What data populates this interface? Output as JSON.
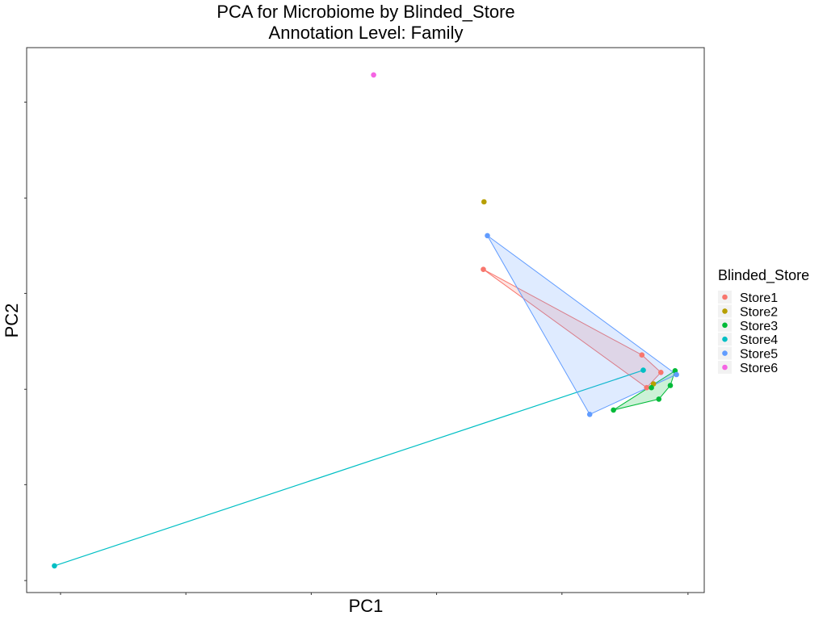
{
  "chart_data": {
    "type": "scatter",
    "title": "PCA for Microbiome by Blinded_Store",
    "subtitle": "Annotation Level: Family",
    "xlabel": "PC1",
    "ylabel": "PC2",
    "xlim": [
      0,
      1
    ],
    "ylim": [
      0,
      1
    ],
    "xticks_labeled": false,
    "yticks_labeled": false,
    "grid": false,
    "legend": {
      "title": "Blinded_Store",
      "placement": "right"
    },
    "series": [
      {
        "name": "Store1",
        "color": "#F8766D",
        "x": [
          0.674,
          0.908,
          0.936,
          0.915
        ],
        "y": [
          0.593,
          0.436,
          0.404,
          0.376
        ],
        "hull": true
      },
      {
        "name": "Store2",
        "color": "#B79F00",
        "x": [
          0.675,
          0.925
        ],
        "y": [
          0.717,
          0.383
        ],
        "hull": false
      },
      {
        "name": "Store3",
        "color": "#00BA38",
        "x": [
          0.866,
          0.933,
          0.95,
          0.957,
          0.922
        ],
        "y": [
          0.335,
          0.355,
          0.38,
          0.407,
          0.376
        ],
        "hull": true
      },
      {
        "name": "Store4",
        "color": "#00BFC4",
        "x": [
          0.041,
          0.91
        ],
        "y": [
          0.049,
          0.408
        ],
        "hull": true
      },
      {
        "name": "Store5",
        "color": "#619CFF",
        "x": [
          0.68,
          0.831,
          0.959
        ],
        "y": [
          0.655,
          0.327,
          0.4
        ],
        "hull": true
      },
      {
        "name": "Store6",
        "color": "#F564E3",
        "x": [
          0.512
        ],
        "y": [
          0.95
        ],
        "hull": false
      }
    ]
  }
}
